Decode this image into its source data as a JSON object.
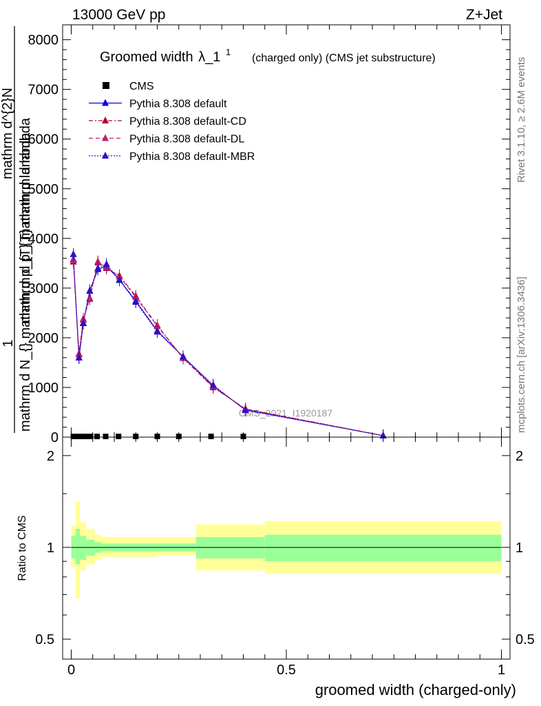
{
  "header": {
    "energy": "13000 GeV pp",
    "process": "Z+Jet"
  },
  "side": {
    "rivet": "Rivet 3.1.10, ≥ 2.6M events",
    "mcplots": "mcplots.cern.ch [arXiv:1306.3436]"
  },
  "chart_data": [
    {
      "type": "line",
      "title_main": "Groomed width",
      "title_lambda": "λ_1",
      "title_sup": "1",
      "title_suffix": "(charged only) (CMS jet substructure)",
      "ylabel": {
        "left_num": "1",
        "frac_num": "mathrm d^2N",
        "frac_den": "mathrm d N_{} mathrm d p_{T} mathrm d lambda",
        "inner_num": "mathrm d^{2}N",
        "inner_den": "mathrm d p_{T} mathrm d lambda"
      },
      "watermark": "CMS_2021_I1920187",
      "ylim": [
        0,
        8300
      ],
      "xlim": [
        -0.02,
        1.02
      ],
      "yticks": [
        0,
        1000,
        2000,
        3000,
        4000,
        5000,
        6000,
        7000,
        8000
      ],
      "yticklabels": [
        "0",
        "1000",
        "2000",
        "3000",
        "4000",
        "5000",
        "6000",
        "7000",
        "8000"
      ],
      "legend_position": "top-left",
      "series": [
        {
          "name": "CMS",
          "color": "#000000",
          "style": "marker",
          "x": [
            0.005,
            0.015,
            0.025,
            0.035,
            0.045,
            0.06,
            0.08,
            0.11,
            0.15,
            0.2,
            0.25,
            0.325,
            0.4
          ],
          "y": [
            0,
            0,
            0,
            0,
            0,
            0,
            0,
            0,
            0,
            0,
            0,
            0,
            0
          ]
        },
        {
          "name": "Pythia 8.308 default",
          "color": "#0000ee",
          "style": "solid",
          "x": [
            0.005,
            0.018,
            0.028,
            0.043,
            0.062,
            0.082,
            0.112,
            0.15,
            0.2,
            0.26,
            0.33,
            0.405,
            0.725
          ],
          "y": [
            3580,
            1600,
            2300,
            2940,
            3380,
            3440,
            3170,
            2740,
            2140,
            1620,
            1030,
            550,
            30
          ]
        },
        {
          "name": "Pythia 8.308 default-CD",
          "color": "#b00030",
          "style": "dashdot",
          "x": [
            0.005,
            0.018,
            0.028,
            0.043,
            0.062,
            0.082,
            0.112,
            0.15,
            0.2,
            0.26,
            0.33,
            0.405,
            0.725
          ],
          "y": [
            3530,
            1680,
            2380,
            2780,
            3530,
            3400,
            3250,
            2840,
            2250,
            1590,
            1000,
            570,
            30
          ]
        },
        {
          "name": "Pythia 8.308 default-DL",
          "color": "#c02070",
          "style": "dashed",
          "x": [
            0.005,
            0.018,
            0.028,
            0.043,
            0.062,
            0.082,
            0.112,
            0.15,
            0.2,
            0.26,
            0.33,
            0.405,
            0.725
          ],
          "y": [
            3560,
            1660,
            2360,
            2800,
            3510,
            3420,
            3230,
            2820,
            2230,
            1600,
            1010,
            565,
            30
          ]
        },
        {
          "name": "Pythia 8.308 default-MBR",
          "color": "#3010c0",
          "style": "dotted",
          "x": [
            0.005,
            0.018,
            0.028,
            0.043,
            0.062,
            0.082,
            0.112,
            0.15,
            0.2,
            0.26,
            0.33,
            0.405,
            0.725
          ],
          "y": [
            3680,
            1600,
            2290,
            2950,
            3400,
            3480,
            3160,
            2720,
            2120,
            1620,
            1050,
            540,
            30
          ]
        }
      ]
    },
    {
      "type": "area",
      "ylabel": "Ratio to CMS",
      "xlabel": "groomed width (charged-only)",
      "ylim": [
        0.43,
        2.3
      ],
      "log_y": true,
      "xlim": [
        -0.02,
        1.02
      ],
      "yticks": [
        0.5,
        1,
        2
      ],
      "yticklabels": [
        "0.5",
        "1",
        "2"
      ],
      "xticks": [
        0,
        0.5,
        1
      ],
      "xticklabels": [
        "0",
        "0.5",
        "1"
      ],
      "reference": 1,
      "bins": [
        {
          "x0": 0.0,
          "x1": 0.01,
          "inner": [
            0.92,
            1.09
          ],
          "outer": [
            0.86,
            1.18
          ]
        },
        {
          "x0": 0.01,
          "x1": 0.02,
          "inner": [
            0.88,
            1.15
          ],
          "outer": [
            0.68,
            1.42
          ]
        },
        {
          "x0": 0.02,
          "x1": 0.035,
          "inner": [
            0.91,
            1.09
          ],
          "outer": [
            0.84,
            1.21
          ]
        },
        {
          "x0": 0.035,
          "x1": 0.055,
          "inner": [
            0.94,
            1.06
          ],
          "outer": [
            0.88,
            1.15
          ]
        },
        {
          "x0": 0.055,
          "x1": 0.07,
          "inner": [
            0.96,
            1.04
          ],
          "outer": [
            0.91,
            1.1
          ]
        },
        {
          "x0": 0.07,
          "x1": 0.2,
          "inner": [
            0.97,
            1.03
          ],
          "outer": [
            0.93,
            1.08
          ]
        },
        {
          "x0": 0.2,
          "x1": 0.29,
          "inner": [
            0.97,
            1.03
          ],
          "outer": [
            0.94,
            1.08
          ]
        },
        {
          "x0": 0.29,
          "x1": 0.45,
          "inner": [
            0.92,
            1.08
          ],
          "outer": [
            0.84,
            1.19
          ]
        },
        {
          "x0": 0.45,
          "x1": 1.0,
          "inner": [
            0.9,
            1.1
          ],
          "outer": [
            0.82,
            1.22
          ]
        }
      ],
      "band_colors": {
        "inner": "#99ff99",
        "outer": "#ffff99"
      }
    }
  ]
}
